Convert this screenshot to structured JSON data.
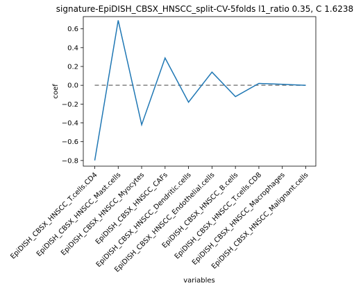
{
  "chart_data": {
    "type": "line",
    "title": "signature-EpiDISH_CBSX_HNSCC_split-CV-5folds l1_ratio 0.35, C 1.6238",
    "xlabel": "variables",
    "ylabel": "coef",
    "ylim": [
      -0.86,
      0.73
    ],
    "yticks": [
      -0.8,
      -0.6,
      -0.4,
      -0.2,
      0.0,
      0.2,
      0.4,
      0.6
    ],
    "ytick_labels": [
      "−0.8",
      "−0.6",
      "−0.4",
      "−0.2",
      "0.0",
      "0.2",
      "0.4",
      "0.6"
    ],
    "categories": [
      "EpiDISH_CBSX_HNSCC_T.cells.CD4",
      "EpiDISH_CBSX_HNSCC_Mast.cells",
      "EpiDISH_CBSX_HNSCC_Myocytes",
      "EpiDISH_CBSX_HNSCC_CAFs",
      "EpiDISH_CBSX_HNSCC_Dendritic.cells",
      "EpiDISH_CBSX_HNSCC_Endothelial.cells",
      "EpiDISH_CBSX_HNSCC_B.cells",
      "EpiDISH_CBSX_HNSCC_T.cells.CD8",
      "EpiDISH_CBSX_HNSCC_Macrophages",
      "EpiDISH_CBSX_HNSCC_Malignant.cells"
    ],
    "series": [
      {
        "values": [
          -0.8,
          0.69,
          -0.42,
          0.29,
          -0.18,
          0.14,
          -0.12,
          0.02,
          0.01,
          0.0
        ],
        "color": "#1f77b4"
      }
    ],
    "reference_line": {
      "y": 0.0,
      "style": "dashed",
      "color": "#808080"
    },
    "grid": false
  }
}
